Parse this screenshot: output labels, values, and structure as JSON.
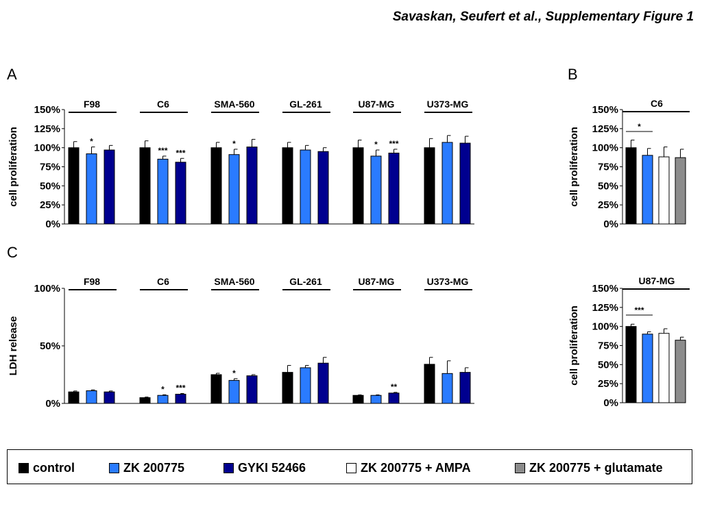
{
  "figure_title": "Savaskan, Seufert et al., Supplementary Figure 1",
  "panel_labels": [
    "A",
    "B",
    "C"
  ],
  "colors": {
    "control": "#000000",
    "zk": "#2a7bff",
    "gyki": "#00008f",
    "zk_ampa": "#ffffff",
    "zk_glutamate": "#8c8c8c"
  },
  "legend": [
    {
      "label": "control",
      "color": "#000000"
    },
    {
      "label": "ZK 200775",
      "color": "#2a7bff"
    },
    {
      "label": "GYKI 52466",
      "color": "#00008f"
    },
    {
      "label": "ZK 200775 + AMPA",
      "color": "#ffffff"
    },
    {
      "label": "ZK 200775 + glutamate",
      "color": "#8c8c8c"
    }
  ],
  "chart_data": [
    {
      "panel": "A",
      "type": "bar",
      "ylabel": "cell proliferation",
      "ylim": [
        0,
        150
      ],
      "yticks": [
        "0%",
        "25%",
        "50%",
        "75%",
        "100%",
        "125%",
        "150%"
      ],
      "series_names": [
        "control",
        "ZK 200775",
        "GYKI 52466"
      ],
      "groups": [
        {
          "label": "F98",
          "values": [
            100,
            92,
            97
          ],
          "errors": [
            8,
            9,
            6
          ],
          "sig": [
            "",
            "*",
            ""
          ]
        },
        {
          "label": "C6",
          "values": [
            100,
            85,
            81
          ],
          "errors": [
            9,
            4,
            5
          ],
          "sig": [
            "",
            "***",
            "***"
          ]
        },
        {
          "label": "SMA-560",
          "values": [
            100,
            91,
            101
          ],
          "errors": [
            7,
            7,
            10
          ],
          "sig": [
            "",
            "*",
            ""
          ]
        },
        {
          "label": "GL-261",
          "values": [
            100,
            97,
            95
          ],
          "errors": [
            7,
            6,
            5
          ],
          "sig": [
            "",
            "",
            ""
          ]
        },
        {
          "label": "U87-MG",
          "values": [
            100,
            89,
            93
          ],
          "errors": [
            10,
            8,
            5
          ],
          "sig": [
            "",
            "*",
            "***"
          ]
        },
        {
          "label": "U373-MG",
          "values": [
            100,
            107,
            106
          ],
          "errors": [
            12,
            9,
            9
          ],
          "sig": [
            "",
            "",
            ""
          ]
        }
      ]
    },
    {
      "panel": "B",
      "type": "bar",
      "group": "C6",
      "ylabel": "cell proliferation",
      "ylim": [
        0,
        150
      ],
      "yticks": [
        "0%",
        "25%",
        "50%",
        "75%",
        "100%",
        "125%",
        "150%"
      ],
      "series_names": [
        "control",
        "ZK 200775",
        "ZK 200775 + AMPA",
        "ZK 200775 + glutamate"
      ],
      "values": [
        100,
        90,
        88,
        87
      ],
      "errors": [
        10,
        9,
        13,
        11
      ],
      "bracket": {
        "from": 0,
        "to": 1,
        "sig": "*"
      }
    },
    {
      "panel": "C",
      "type": "bar",
      "ylabel": "LDH release",
      "ylim": [
        0,
        100
      ],
      "yticks": [
        "0%",
        "50%",
        "100%"
      ],
      "series_names": [
        "control",
        "ZK 200775",
        "GYKI 52466"
      ],
      "groups": [
        {
          "label": "F98",
          "values": [
            10,
            11,
            10
          ],
          "errors": [
            0.8,
            0.8,
            0.8
          ],
          "sig": [
            "",
            "",
            ""
          ]
        },
        {
          "label": "C6",
          "values": [
            5,
            7,
            8
          ],
          "errors": [
            0.5,
            0.5,
            0.6
          ],
          "sig": [
            "",
            "*",
            "***"
          ]
        },
        {
          "label": "SMA-560",
          "values": [
            25,
            20,
            24
          ],
          "errors": [
            1.2,
            1.5,
            1
          ],
          "sig": [
            "",
            "*",
            ""
          ]
        },
        {
          "label": "GL-261",
          "values": [
            27,
            31,
            35
          ],
          "errors": [
            6,
            2,
            5
          ],
          "sig": [
            "",
            "",
            ""
          ]
        },
        {
          "label": "U87-MG",
          "values": [
            7,
            7,
            9
          ],
          "errors": [
            0.4,
            0.4,
            0.6
          ],
          "sig": [
            "",
            "",
            "**"
          ]
        },
        {
          "label": "U373-MG",
          "values": [
            34,
            26,
            27
          ],
          "errors": [
            6,
            11,
            4
          ],
          "sig": [
            "",
            "",
            ""
          ]
        }
      ]
    },
    {
      "panel": "C",
      "type": "bar",
      "group": "U87-MG",
      "ylabel": "cell proliferation",
      "ylim": [
        0,
        150
      ],
      "yticks": [
        "0%",
        "25%",
        "50%",
        "75%",
        "100%",
        "125%",
        "150%"
      ],
      "series_names": [
        "control",
        "ZK 200775",
        "ZK 200775 + AMPA",
        "ZK 200775 + glutamate"
      ],
      "values": [
        100,
        90,
        91,
        82
      ],
      "errors": [
        3,
        3,
        6,
        4
      ],
      "bracket": {
        "from": 0,
        "to": 1,
        "sig": "***"
      }
    }
  ]
}
